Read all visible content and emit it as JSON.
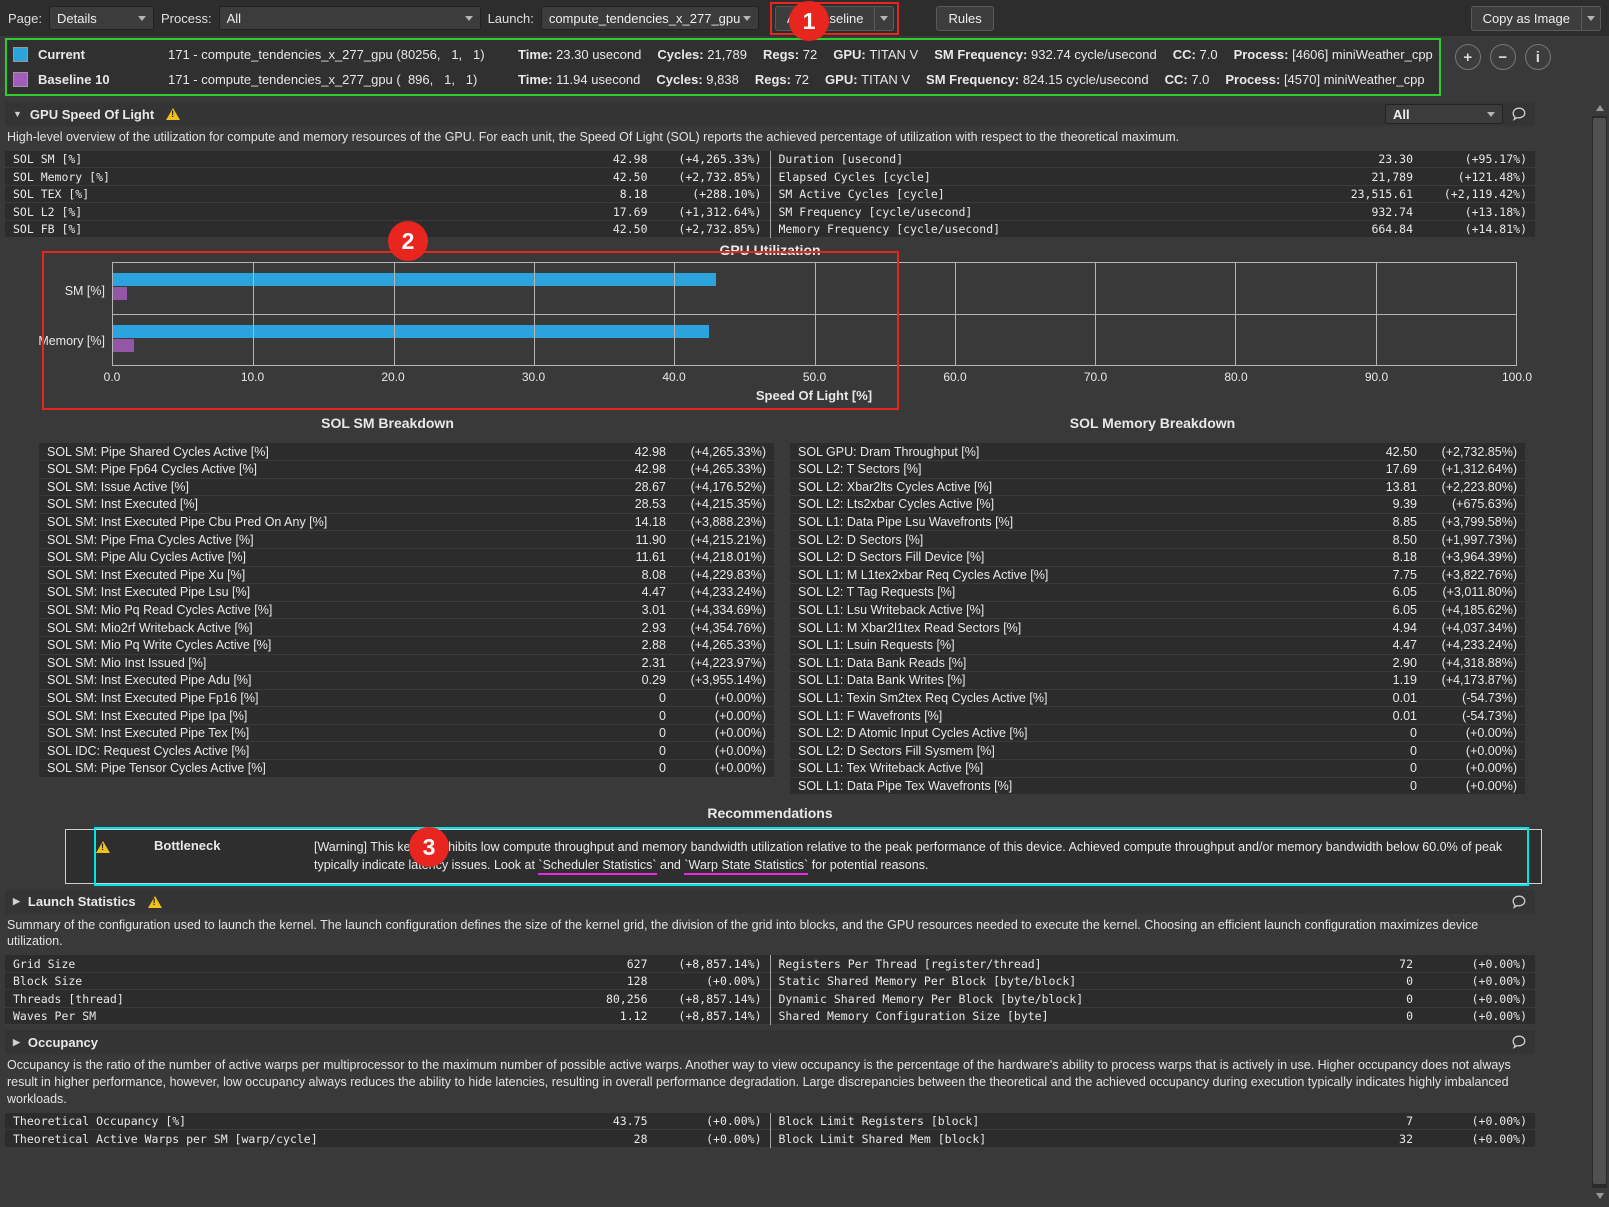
{
  "toolbar": {
    "page_label": "Page:",
    "page_value": "Details",
    "process_label": "Process:",
    "process_value": "All",
    "launch_label": "Launch:",
    "launch_value": "compute_tendencies_x_277_gpu",
    "add_baseline": "Add Baseline",
    "rules": "Rules",
    "copy_as_image": "Copy as Image"
  },
  "annotations": {
    "badge1": "1",
    "badge2": "2",
    "badge3": "3",
    "red": "#e8251f",
    "cyan": "#00e5e5",
    "magenta": "#e52ae5",
    "green": "#2ecc2e"
  },
  "baselines": {
    "rows": [
      {
        "name": "Current",
        "swatch": "#2ba3dc",
        "kernel": "171 - compute_tendencies_x_277_gpu (80256,   1,   1)",
        "pairs": [
          {
            "key": "Time:",
            "value": "23.30 usecond"
          },
          {
            "key": "Cycles:",
            "value": "21,789"
          },
          {
            "key": "Regs:",
            "value": "72"
          },
          {
            "key": "GPU:",
            "value": "TITAN V"
          },
          {
            "key": "SM Frequency:",
            "value": "932.74 cycle/usecond"
          },
          {
            "key": "CC:",
            "value": "7.0"
          },
          {
            "key": "Process:",
            "value": "[4606] miniWeather_cpp"
          }
        ]
      },
      {
        "name": "Baseline 10",
        "swatch": "#a35bbe",
        "kernel": "171 - compute_tendencies_x_277_gpu (  896,   1,   1)",
        "pairs": [
          {
            "key": "Time:",
            "value": "11.94 usecond"
          },
          {
            "key": "Cycles:",
            "value": "9,838"
          },
          {
            "key": "Regs:",
            "value": "72"
          },
          {
            "key": "GPU:",
            "value": "TITAN V"
          },
          {
            "key": "SM Frequency:",
            "value": "824.15 cycle/usecond"
          },
          {
            "key": "CC:",
            "value": "7.0"
          },
          {
            "key": "Process:",
            "value": "[4570] miniWeather_cpp"
          }
        ]
      }
    ]
  },
  "sol": {
    "title": "GPU Speed Of Light",
    "filter_value": "All",
    "description": "High-level overview of the utilization for compute and memory resources of the GPU. For each unit, the Speed Of Light (SOL) reports the achieved percentage of utilization with respect to the theoretical maximum.",
    "left_rows": [
      {
        "label": "SOL SM [%]",
        "value": "42.98",
        "delta": "(+4,265.33%)"
      },
      {
        "label": "SOL Memory [%]",
        "value": "42.50",
        "delta": "(+2,732.85%)"
      },
      {
        "label": "SOL TEX [%]",
        "value": "8.18",
        "delta": "(+288.10%)"
      },
      {
        "label": "SOL L2 [%]",
        "value": "17.69",
        "delta": "(+1,312.64%)"
      },
      {
        "label": "SOL FB [%]",
        "value": "42.50",
        "delta": "(+2,732.85%)"
      }
    ],
    "right_rows": [
      {
        "label": "Duration [usecond]",
        "value": "23.30",
        "delta": "(+95.17%)"
      },
      {
        "label": "Elapsed Cycles [cycle]",
        "value": "21,789",
        "delta": "(+121.48%)"
      },
      {
        "label": "SM Active Cycles [cycle]",
        "value": "23,515.61",
        "delta": "(+2,119.42%)"
      },
      {
        "label": "SM Frequency [cycle/usecond]",
        "value": "932.74",
        "delta": "(+13.18%)"
      },
      {
        "label": "Memory Frequency [cycle/usecond]",
        "value": "664.84",
        "delta": "(+14.81%)"
      }
    ]
  },
  "chart_data": {
    "type": "bar",
    "orientation": "horizontal",
    "title": "GPU Utilization",
    "xlabel": "Speed Of Light [%]",
    "categories": [
      "SM [%]",
      "Memory [%]"
    ],
    "series": [
      {
        "name": "Current",
        "color": "#2ba3dc",
        "values": [
          42.98,
          42.5
        ]
      },
      {
        "name": "Baseline 10",
        "color": "#9457a8",
        "values": [
          0.98,
          1.5
        ]
      }
    ],
    "xlim": [
      0,
      100
    ],
    "xtick_labels": [
      "0.0",
      "10.0",
      "20.0",
      "30.0",
      "40.0",
      "50.0",
      "60.0",
      "70.0",
      "80.0",
      "90.0",
      "100.0"
    ],
    "grid": true,
    "legend_position": "none"
  },
  "breakdown": {
    "sm_title": "SOL SM Breakdown",
    "mem_title": "SOL Memory Breakdown",
    "sm_rows": [
      {
        "label": "SOL SM: Pipe Shared Cycles Active [%]",
        "value": "42.98",
        "delta": "(+4,265.33%)"
      },
      {
        "label": "SOL SM: Pipe Fp64 Cycles Active [%]",
        "value": "42.98",
        "delta": "(+4,265.33%)"
      },
      {
        "label": "SOL SM: Issue Active [%]",
        "value": "28.67",
        "delta": "(+4,176.52%)"
      },
      {
        "label": "SOL SM: Inst Executed [%]",
        "value": "28.53",
        "delta": "(+4,215.35%)"
      },
      {
        "label": "SOL SM: Inst Executed Pipe Cbu Pred On Any [%]",
        "value": "14.18",
        "delta": "(+3,888.23%)"
      },
      {
        "label": "SOL SM: Pipe Fma Cycles Active [%]",
        "value": "11.90",
        "delta": "(+4,215.21%)"
      },
      {
        "label": "SOL SM: Pipe Alu Cycles Active [%]",
        "value": "11.61",
        "delta": "(+4,218.01%)"
      },
      {
        "label": "SOL SM: Inst Executed Pipe Xu [%]",
        "value": "8.08",
        "delta": "(+4,229.83%)"
      },
      {
        "label": "SOL SM: Inst Executed Pipe Lsu [%]",
        "value": "4.47",
        "delta": "(+4,233.24%)"
      },
      {
        "label": "SOL SM: Mio Pq Read Cycles Active [%]",
        "value": "3.01",
        "delta": "(+4,334.69%)"
      },
      {
        "label": "SOL SM: Mio2rf Writeback Active [%]",
        "value": "2.93",
        "delta": "(+4,354.76%)"
      },
      {
        "label": "SOL SM: Mio Pq Write Cycles Active [%]",
        "value": "2.88",
        "delta": "(+4,265.33%)"
      },
      {
        "label": "SOL SM: Mio Inst Issued [%]",
        "value": "2.31",
        "delta": "(+4,223.97%)"
      },
      {
        "label": "SOL SM: Inst Executed Pipe Adu [%]",
        "value": "0.29",
        "delta": "(+3,955.14%)"
      },
      {
        "label": "SOL SM: Inst Executed Pipe Fp16 [%]",
        "value": "0",
        "delta": "(+0.00%)"
      },
      {
        "label": "SOL SM: Inst Executed Pipe Ipa [%]",
        "value": "0",
        "delta": "(+0.00%)"
      },
      {
        "label": "SOL SM: Inst Executed Pipe Tex [%]",
        "value": "0",
        "delta": "(+0.00%)"
      },
      {
        "label": "SOL IDC: Request Cycles Active [%]",
        "value": "0",
        "delta": "(+0.00%)"
      },
      {
        "label": "SOL SM: Pipe Tensor Cycles Active [%]",
        "value": "0",
        "delta": "(+0.00%)"
      }
    ],
    "mem_rows": [
      {
        "label": "SOL GPU: Dram Throughput [%]",
        "value": "42.50",
        "delta": "(+2,732.85%)"
      },
      {
        "label": "SOL L2: T Sectors [%]",
        "value": "17.69",
        "delta": "(+1,312.64%)"
      },
      {
        "label": "SOL L2: Xbar2lts Cycles Active [%]",
        "value": "13.81",
        "delta": "(+2,223.80%)"
      },
      {
        "label": "SOL L2: Lts2xbar Cycles Active [%]",
        "value": "9.39",
        "delta": "(+675.63%)"
      },
      {
        "label": "SOL L1: Data Pipe Lsu Wavefronts [%]",
        "value": "8.85",
        "delta": "(+3,799.58%)"
      },
      {
        "label": "SOL L2: D Sectors [%]",
        "value": "8.50",
        "delta": "(+1,997.73%)"
      },
      {
        "label": "SOL L2: D Sectors Fill Device [%]",
        "value": "8.18",
        "delta": "(+3,964.39%)"
      },
      {
        "label": "SOL L1: M L1tex2xbar Req Cycles Active [%]",
        "value": "7.75",
        "delta": "(+3,822.76%)"
      },
      {
        "label": "SOL L2: T Tag Requests [%]",
        "value": "6.05",
        "delta": "(+3,011.80%)"
      },
      {
        "label": "SOL L1: Lsu Writeback Active [%]",
        "value": "6.05",
        "delta": "(+4,185.62%)"
      },
      {
        "label": "SOL L1: M Xbar2l1tex Read Sectors [%]",
        "value": "4.94",
        "delta": "(+4,037.34%)"
      },
      {
        "label": "SOL L1: Lsuin Requests [%]",
        "value": "4.47",
        "delta": "(+4,233.24%)"
      },
      {
        "label": "SOL L1: Data Bank Reads [%]",
        "value": "2.90",
        "delta": "(+4,318.88%)"
      },
      {
        "label": "SOL L1: Data Bank Writes [%]",
        "value": "1.19",
        "delta": "(+4,173.87%)"
      },
      {
        "label": "SOL L1: Texin Sm2tex Req Cycles Active [%]",
        "value": "0.01",
        "delta": "(-54.73%)"
      },
      {
        "label": "SOL L1: F Wavefronts [%]",
        "value": "0.01",
        "delta": "(-54.73%)"
      },
      {
        "label": "SOL L2: D Atomic Input Cycles Active [%]",
        "value": "0",
        "delta": "(+0.00%)"
      },
      {
        "label": "SOL L2: D Sectors Fill Sysmem [%]",
        "value": "0",
        "delta": "(+0.00%)"
      },
      {
        "label": "SOL L1: Tex Writeback Active [%]",
        "value": "0",
        "delta": "(+0.00%)"
      },
      {
        "label": "SOL L1: Data Pipe Tex Wavefronts [%]",
        "value": "0",
        "delta": "(+0.00%)"
      }
    ]
  },
  "recommendations": {
    "title": "Recommendations",
    "bottleneck_label": "Bottleneck",
    "text_part1": "[Warning] This kernel exhibits low compute throughput and memory bandwidth utilization relative to the peak performance of this device. Achieved compute throughput and/or memory bandwidth below 60.0% of peak typically indicate latency issues. Look at ",
    "link1": "`Scheduler Statistics`",
    "mid": " and ",
    "link2": "`Warp State Statistics`",
    "text_part2": " for potential reasons."
  },
  "launch": {
    "title": "Launch Statistics",
    "description": "Summary of the configuration used to launch the kernel. The launch configuration defines the size of the kernel grid, the division of the grid into blocks, and the GPU resources needed to execute the kernel. Choosing an efficient launch configuration maximizes device utilization.",
    "left_rows": [
      {
        "label": "Grid Size",
        "value": "627",
        "delta": "(+8,857.14%)"
      },
      {
        "label": "Block Size",
        "value": "128",
        "delta": "(+0.00%)"
      },
      {
        "label": "Threads [thread]",
        "value": "80,256",
        "delta": "(+8,857.14%)"
      },
      {
        "label": "Waves Per SM",
        "value": "1.12",
        "delta": "(+8,857.14%)"
      }
    ],
    "right_rows": [
      {
        "label": "Registers Per Thread [register/thread]",
        "value": "72",
        "delta": "(+0.00%)"
      },
      {
        "label": "Static Shared Memory Per Block [byte/block]",
        "value": "0",
        "delta": "(+0.00%)"
      },
      {
        "label": "Dynamic Shared Memory Per Block [byte/block]",
        "value": "0",
        "delta": "(+0.00%)"
      },
      {
        "label": "Shared Memory Configuration Size [byte]",
        "value": "0",
        "delta": "(+0.00%)"
      }
    ]
  },
  "occupancy": {
    "title": "Occupancy",
    "description": "Occupancy is the ratio of the number of active warps per multiprocessor to the maximum number of possible active warps. Another way to view occupancy is the percentage of the hardware's ability to process warps that is actively in use. Higher occupancy does not always result in higher performance, however, low occupancy always reduces the ability to hide latencies, resulting in overall performance degradation. Large discrepancies between the theoretical and the achieved occupancy during execution typically indicates highly imbalanced workloads.",
    "left_rows": [
      {
        "label": "Theoretical Occupancy [%]",
        "value": "43.75",
        "delta": "(+0.00%)"
      },
      {
        "label": "Theoretical Active Warps per SM [warp/cycle]",
        "value": "28",
        "delta": "(+0.00%)"
      }
    ],
    "right_rows": [
      {
        "label": "Block Limit Registers [block]",
        "value": "7",
        "delta": "(+0.00%)"
      },
      {
        "label": "Block Limit Shared Mem [block]",
        "value": "32",
        "delta": "(+0.00%)"
      }
    ]
  }
}
